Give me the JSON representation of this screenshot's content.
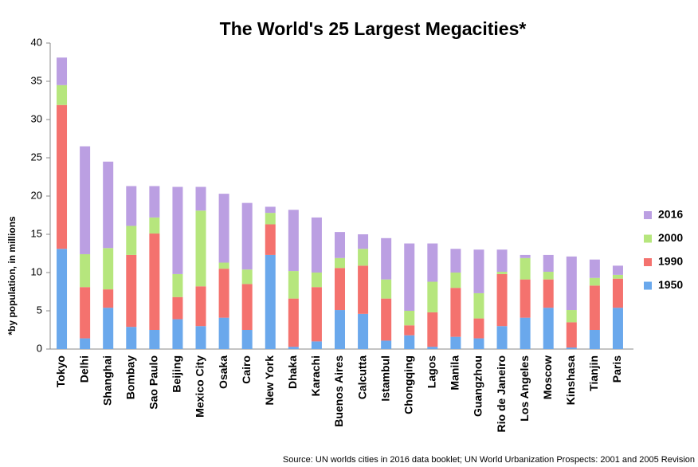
{
  "chart_data": {
    "type": "stacked_bar",
    "title": "The World's 25 Largest Megacities*",
    "y_label": "*by population, in millions",
    "source": "Source: UN worlds cities in 2016 data booklet; UN World Urbanization Prospects: 2001 and 2005 Revision",
    "categories": [
      "Tokyo",
      "Delhi",
      "Shanghai",
      "Bombay",
      "Sao Paulo",
      "Beijing",
      "Mexico City",
      "Osaka",
      "Cairo",
      "New York",
      "Dhaka",
      "Karachi",
      "Buenos Aires",
      "Calcutta",
      "Istambul",
      "Chongqing",
      "Lagos",
      "Manila",
      "Guangzhou",
      "Rio de Janeiro",
      "Los Angeles",
      "Moscow",
      "Kinshasa",
      "Tianjin",
      "Paris"
    ],
    "series": [
      {
        "name": "1950",
        "color": "#6aa8ec",
        "values": [
          13.1,
          1.4,
          5.4,
          2.9,
          2.5,
          3.9,
          3.0,
          4.1,
          2.5,
          12.3,
          0.3,
          1.0,
          5.1,
          4.6,
          1.1,
          1.8,
          0.3,
          1.6,
          1.4,
          3.0,
          4.1,
          5.4,
          0.2,
          2.5,
          5.4
        ]
      },
      {
        "name": "1990",
        "color": "#f4726e",
        "values": [
          18.8,
          6.7,
          2.4,
          9.4,
          12.6,
          2.9,
          5.2,
          6.4,
          6.0,
          4.0,
          6.3,
          7.1,
          5.5,
          6.3,
          5.5,
          1.3,
          4.5,
          6.4,
          2.6,
          6.8,
          5.0,
          3.7,
          3.3,
          5.8,
          3.8
        ]
      },
      {
        "name": "2000",
        "color": "#b6e67d",
        "values": [
          2.6,
          4.3,
          5.4,
          3.8,
          2.1,
          3.0,
          9.9,
          0.8,
          1.9,
          1.5,
          3.6,
          1.9,
          1.3,
          2.2,
          2.5,
          1.9,
          4.0,
          2.0,
          3.3,
          0.3,
          2.8,
          1.0,
          1.6,
          1.0,
          0.5
        ]
      },
      {
        "name": "2016",
        "color": "#bb9fe2",
        "values": [
          3.6,
          14.1,
          11.3,
          5.2,
          4.1,
          11.4,
          3.1,
          9.0,
          8.7,
          0.8,
          8.0,
          7.2,
          3.4,
          1.9,
          5.4,
          8.8,
          5.0,
          3.1,
          5.7,
          2.9,
          0.4,
          2.2,
          7.0,
          2.4,
          1.2
        ]
      }
    ],
    "ylim": [
      0,
      40
    ],
    "yticks": [
      0,
      5,
      10,
      15,
      20,
      25,
      30,
      35,
      40
    ],
    "legend": "right"
  }
}
